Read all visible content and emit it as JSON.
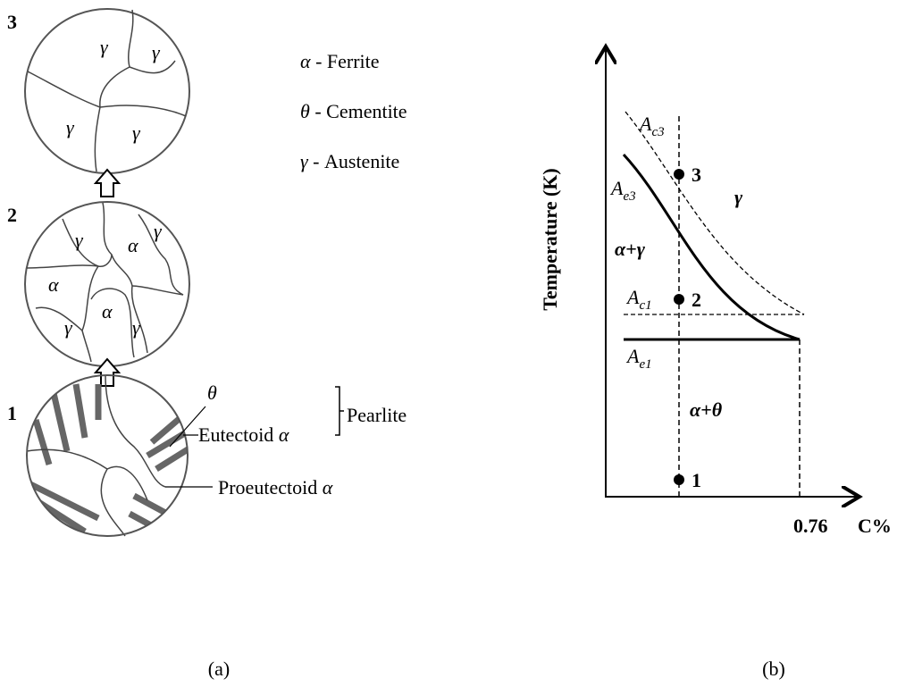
{
  "panel_a": {
    "stages": [
      {
        "label": "3",
        "phases": [
          "γ",
          "γ",
          "γ",
          "γ"
        ]
      },
      {
        "label": "2",
        "phases": [
          "γ",
          "α",
          "γ",
          "α",
          "α",
          "γ",
          "γ"
        ]
      },
      {
        "label": "1"
      }
    ],
    "microconstituents": {
      "cementite": "θ",
      "eutectoid": "Eutectoid",
      "eutectoid_symbol": "α",
      "pearlite": "Pearlite",
      "proeutectoid": "Proeutectoid",
      "proeutectoid_symbol": "α"
    },
    "legend": [
      {
        "symbol": "α",
        "text": "- Ferrite"
      },
      {
        "symbol": "θ",
        "text": "- Cementite"
      },
      {
        "symbol": "γ",
        "text": "- Austenite"
      }
    ],
    "caption": "(a)"
  },
  "panel_b": {
    "y_axis_label": "Temperature (K)",
    "x_axis_label": "C%",
    "x_mark": "0.76",
    "lines": [
      {
        "symbol": "A",
        "subscript": "c3"
      },
      {
        "symbol": "A",
        "subscript": "e3"
      },
      {
        "symbol": "A",
        "subscript": "c1"
      },
      {
        "symbol": "A",
        "subscript": "e1"
      }
    ],
    "regions": [
      "γ",
      "α+γ",
      "α+θ"
    ],
    "points": [
      "3",
      "2",
      "1"
    ],
    "caption": "(b)"
  }
}
